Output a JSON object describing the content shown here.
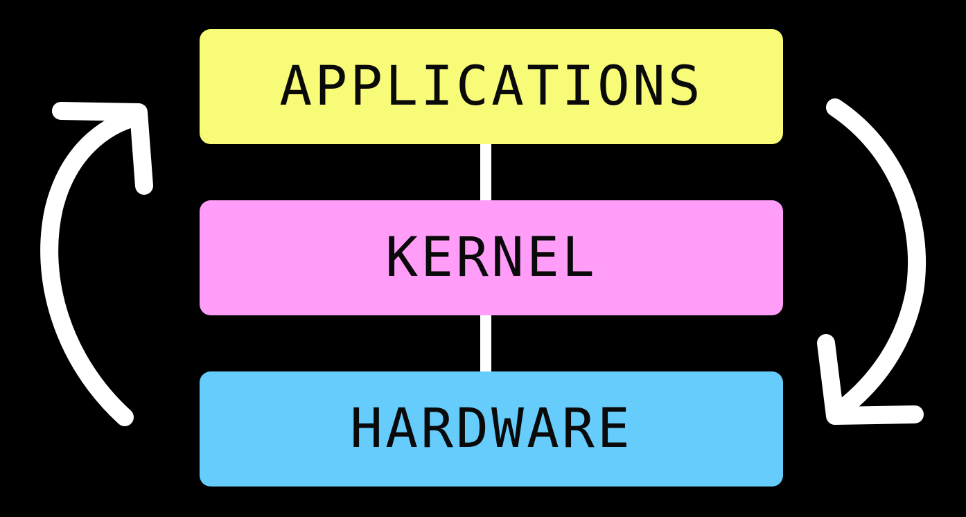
{
  "diagram": {
    "layers": [
      {
        "id": "applications",
        "label": "APPLICATIONS",
        "color": "#f8fb78"
      },
      {
        "id": "kernel",
        "label": "KERNEL",
        "color": "#ff9df9"
      },
      {
        "id": "hardware",
        "label": "HARDWARE",
        "color": "#66ccfc"
      }
    ],
    "connector_color": "#ffffff",
    "arrow_color": "#ffffff",
    "arrows": [
      {
        "id": "left-arrow",
        "direction": "up",
        "icon": "curved-arrow-up-icon"
      },
      {
        "id": "right-arrow",
        "direction": "down",
        "icon": "curved-arrow-down-icon"
      }
    ],
    "background": "#000000"
  }
}
